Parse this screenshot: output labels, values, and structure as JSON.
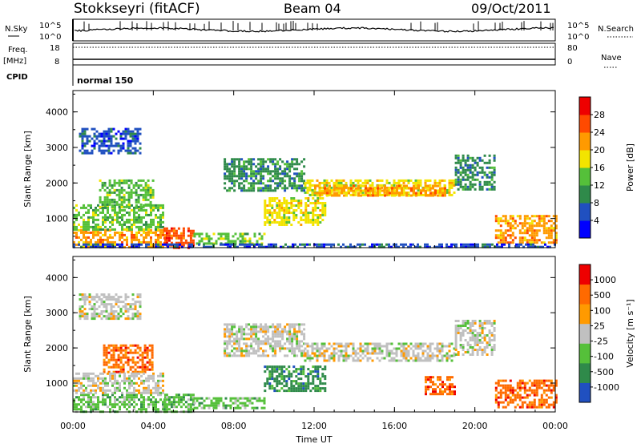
{
  "header": {
    "station": "Stokkseyri (fitACF)",
    "beam": "Beam 04",
    "date": "09/Oct/2011"
  },
  "strip": {
    "nsky_label": "N.Sky",
    "nsky_ticks": [
      "10^5",
      "10^0"
    ],
    "nsearch_label": "N.Search",
    "nsearch_ticks": [
      "10^5",
      "10^0"
    ],
    "freq_label": "Freq.",
    "freq_unit": "[MHz]",
    "freq_ticks": [
      "18",
      "8"
    ],
    "nave_label": "Nave",
    "nave_ticks": [
      "80",
      "0"
    ],
    "cpid_label": "CPID",
    "cpid_value": "normal 150"
  },
  "chart_data": [
    {
      "type": "heatmap",
      "name": "power-panel",
      "ylabel": "Slant Range [km]",
      "y_ticks": [
        1000,
        2000,
        3000,
        4000
      ],
      "ylim": [
        180,
        4600
      ],
      "x_ticks": [
        "00:00",
        "04:00",
        "08:00",
        "12:00",
        "16:00",
        "20:00",
        "00:00"
      ],
      "xlim_hours": [
        0,
        24
      ],
      "colorbar": {
        "label": "Power [dB]",
        "ticks": [
          "28",
          "24",
          "20",
          "16",
          "12",
          "8",
          "4"
        ],
        "colors": [
          "#0000ff",
          "#2050c0",
          "#2f8a4a",
          "#55c03a",
          "#f3e400",
          "#ff9a00",
          "#ff4a00",
          "#ee0000"
        ]
      },
      "regions": [
        {
          "t0": 0.0,
          "t1": 4.6,
          "r0": 200,
          "r1": 700,
          "level": 5
        },
        {
          "t0": 0.0,
          "t1": 4.5,
          "r0": 700,
          "r1": 1400,
          "level": 3
        },
        {
          "t0": 0.3,
          "t1": 3.3,
          "r0": 2850,
          "r1": 3550,
          "level": 1
        },
        {
          "t0": 1.3,
          "t1": 4.0,
          "r0": 1300,
          "r1": 2100,
          "level": 3
        },
        {
          "t0": 4.5,
          "t1": 6.0,
          "r0": 200,
          "r1": 750,
          "level": 6
        },
        {
          "t0": 6.0,
          "t1": 9.5,
          "r0": 300,
          "r1": 600,
          "level": 3
        },
        {
          "t0": 7.5,
          "t1": 11.5,
          "r0": 1800,
          "r1": 2700,
          "level": 2
        },
        {
          "t0": 9.5,
          "t1": 12.5,
          "r0": 800,
          "r1": 1600,
          "level": 4
        },
        {
          "t0": 11.5,
          "t1": 19.0,
          "r0": 1650,
          "r1": 2100,
          "level": 4
        },
        {
          "t0": 12.0,
          "t1": 18.5,
          "r0": 1650,
          "r1": 1950,
          "level": 5
        },
        {
          "t0": 19.0,
          "t1": 21.0,
          "r0": 1800,
          "r1": 2800,
          "level": 2
        },
        {
          "t0": 21.0,
          "t1": 24.0,
          "r0": 300,
          "r1": 1100,
          "level": 5
        },
        {
          "t0": 0.0,
          "t1": 24.0,
          "r0": 180,
          "r1": 300,
          "level": 1
        }
      ]
    },
    {
      "type": "heatmap",
      "name": "velocity-panel",
      "ylabel": "Slant Range [km]",
      "y_ticks": [
        1000,
        2000,
        3000,
        4000
      ],
      "ylim": [
        180,
        4600
      ],
      "x_ticks": [
        "00:00",
        "04:00",
        "08:00",
        "12:00",
        "16:00",
        "20:00",
        "00:00"
      ],
      "xlim_hours": [
        0,
        24
      ],
      "xlabel": "Time UT",
      "colorbar": {
        "label": "Velocity [m s⁻¹]",
        "ticks": [
          "1000",
          "500",
          "100",
          "25",
          "-25",
          "-100",
          "-500",
          "-1000"
        ],
        "colors": [
          "#2050c0",
          "#2f8a4a",
          "#55c03a",
          "#c0c0c0",
          "#ff9a00",
          "#ff6a00",
          "#ee0000"
        ]
      },
      "regions": [
        {
          "t0": 0.0,
          "t1": 4.6,
          "r0": 200,
          "r1": 700,
          "level": 2
        },
        {
          "t0": 0.3,
          "t1": 3.3,
          "r0": 2850,
          "r1": 3550,
          "level": 3
        },
        {
          "t0": 1.5,
          "t1": 4.0,
          "r0": 1300,
          "r1": 2100,
          "level": 5
        },
        {
          "t0": 0.0,
          "t1": 4.5,
          "r0": 700,
          "r1": 1300,
          "level": 3
        },
        {
          "t0": 4.5,
          "t1": 6.0,
          "r0": 200,
          "r1": 700,
          "level": 2
        },
        {
          "t0": 6.0,
          "t1": 9.5,
          "r0": 300,
          "r1": 600,
          "level": 2
        },
        {
          "t0": 7.5,
          "t1": 11.5,
          "r0": 1800,
          "r1": 2700,
          "level": 3
        },
        {
          "t0": 9.5,
          "t1": 12.5,
          "r0": 800,
          "r1": 1500,
          "level": 1
        },
        {
          "t0": 11.5,
          "t1": 19.0,
          "r0": 1650,
          "r1": 2150,
          "level": 3
        },
        {
          "t0": 19.0,
          "t1": 21.0,
          "r0": 1800,
          "r1": 2800,
          "level": 3
        },
        {
          "t0": 17.5,
          "t1": 19.0,
          "r0": 700,
          "r1": 1200,
          "level": 5
        },
        {
          "t0": 21.0,
          "t1": 24.0,
          "r0": 300,
          "r1": 1100,
          "level": 5
        }
      ]
    }
  ]
}
